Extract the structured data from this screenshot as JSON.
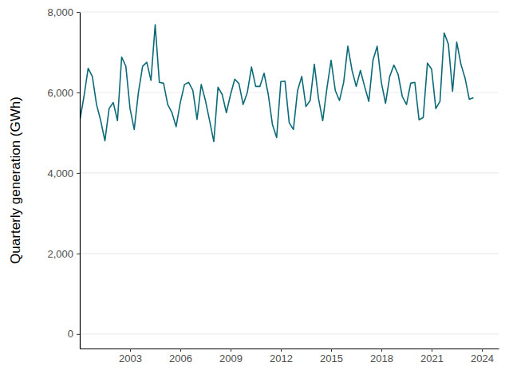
{
  "chart_data": {
    "type": "line",
    "y_label": "Quarterly generation (GWh)",
    "x": [
      2000,
      2000.25,
      2000.5,
      2000.75,
      2001,
      2001.25,
      2001.5,
      2001.75,
      2002,
      2002.25,
      2002.5,
      2002.75,
      2003,
      2003.25,
      2003.5,
      2003.75,
      2004,
      2004.25,
      2004.5,
      2004.75,
      2005,
      2005.25,
      2005.5,
      2005.75,
      2006,
      2006.25,
      2006.5,
      2006.75,
      2007,
      2007.25,
      2007.5,
      2007.75,
      2008,
      2008.25,
      2008.5,
      2008.75,
      2009,
      2009.25,
      2009.5,
      2009.75,
      2010,
      2010.25,
      2010.5,
      2010.75,
      2011,
      2011.25,
      2011.5,
      2011.75,
      2012,
      2012.25,
      2012.5,
      2012.75,
      2013,
      2013.25,
      2013.5,
      2013.75,
      2014,
      2014.25,
      2014.5,
      2014.75,
      2015,
      2015.25,
      2015.5,
      2015.75,
      2016,
      2016.25,
      2016.5,
      2016.75,
      2017,
      2017.25,
      2017.5,
      2017.75,
      2018,
      2018.25,
      2018.5,
      2018.75,
      2019,
      2019.25,
      2019.5,
      2019.75,
      2020,
      2020.25,
      2020.5,
      2020.75,
      2021,
      2021.25,
      2021.5,
      2021.75,
      2022,
      2022.25,
      2022.5,
      2022.75,
      2023,
      2023.25,
      2023.5
    ],
    "values": [
      5300,
      5900,
      6600,
      6400,
      5700,
      5300,
      4800,
      5600,
      5750,
      5300,
      6880,
      6650,
      5600,
      5080,
      6000,
      6650,
      6750,
      6300,
      7680,
      6250,
      6230,
      5700,
      5500,
      5150,
      5750,
      6200,
      6250,
      6050,
      5330,
      6200,
      5800,
      5300,
      4780,
      6130,
      5950,
      5500,
      5950,
      6330,
      6220,
      5700,
      6000,
      6630,
      6150,
      6150,
      6480,
      5950,
      5200,
      4880,
      6270,
      6280,
      5250,
      5080,
      6050,
      6400,
      5650,
      5800,
      6700,
      5850,
      5300,
      6100,
      6800,
      6050,
      5800,
      6250,
      7150,
      6550,
      6150,
      6550,
      6150,
      5780,
      6800,
      7150,
      6250,
      5730,
      6400,
      6680,
      6450,
      5900,
      5700,
      6230,
      6250,
      5320,
      5380,
      6730,
      6580,
      5600,
      5780,
      7480,
      7200,
      6030,
      7250,
      6700,
      6350,
      5830,
      5870
    ],
    "color": "#0b6a78",
    "xlim": [
      2000,
      2025
    ],
    "xticks": [
      2003,
      2006,
      2009,
      2012,
      2015,
      2018,
      2021,
      2024
    ],
    "ylim": [
      -360,
      8000
    ],
    "yticks": [
      0,
      {
        "value": 2000,
        "label": "2,000"
      },
      {
        "value": 4000,
        "label": "4,000"
      },
      {
        "value": 6000,
        "label": "6,000"
      },
      {
        "value": 8000,
        "label": "8,000"
      }
    ],
    "grid": true
  }
}
